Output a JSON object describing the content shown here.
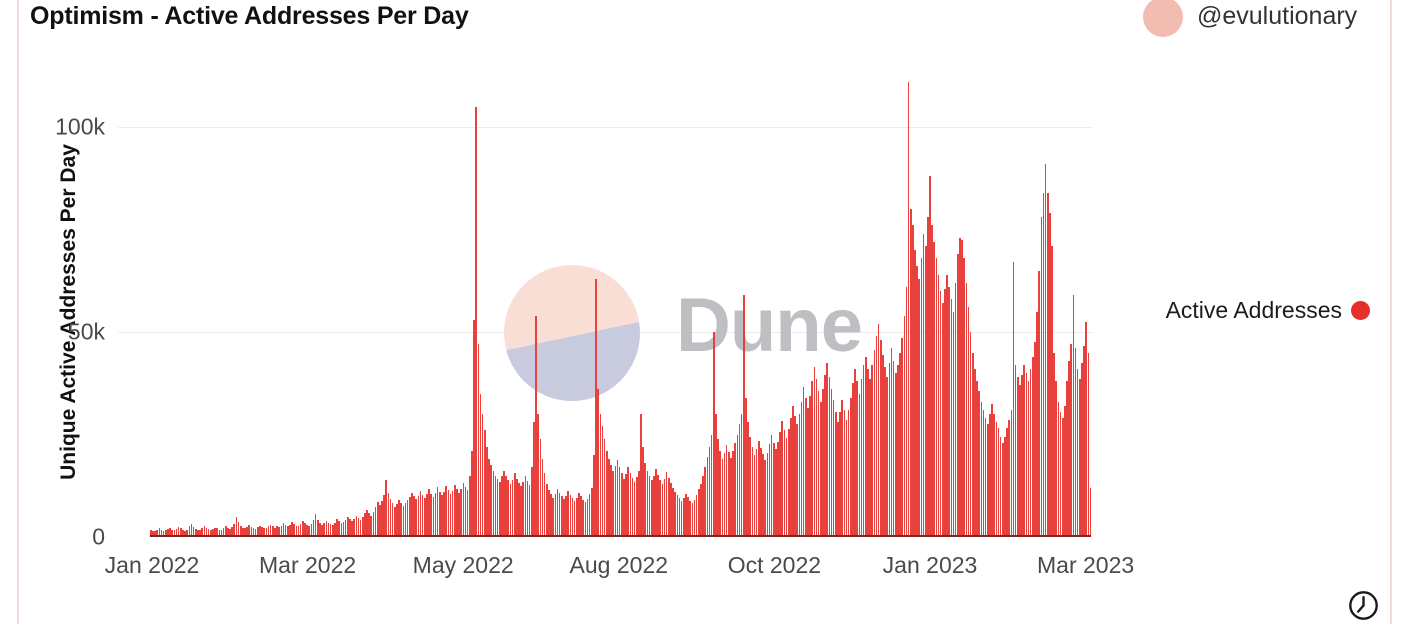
{
  "header": {
    "title": "Optimism - Active Addresses Per Day",
    "author_handle": "@evulutionary"
  },
  "watermark": {
    "icon": "dune-logo-icon",
    "text": "Dune"
  },
  "icons": {
    "clock": "clock-icon",
    "avatar": "author-avatar"
  },
  "colors": {
    "bar": "#e8403c",
    "legend_dot": "#e62e2a",
    "avatar_bg": "#f3bcb1",
    "card_border": "#efdbd4",
    "gridline": "#ececec",
    "baseline": "#7e2521"
  },
  "chart": {
    "y_axis_title": "Unique Active Addresses Per Day",
    "y_ticks": [
      {
        "label": "100k",
        "value": 100000
      },
      {
        "label": "50k",
        "value": 50000
      },
      {
        "label": "0",
        "value": 0
      }
    ],
    "x_ticks": [
      "Jan 2022",
      "Mar 2022",
      "May 2022",
      "Aug 2022",
      "Oct 2022",
      "Jan 2023",
      "Mar 2023"
    ],
    "legend": {
      "label": "Active Addresses"
    }
  },
  "chart_data": {
    "type": "bar",
    "title": "Optimism - Active Addresses Per Day",
    "xlabel": "",
    "ylabel": "Unique Active Addresses Per Day",
    "x_start": "2022-01-01",
    "x_frequency": "daily",
    "x_tick_labels": [
      "Jan 2022",
      "Mar 2022",
      "May 2022",
      "Aug 2022",
      "Oct 2022",
      "Jan 2023",
      "Mar 2023"
    ],
    "ylim": [
      0,
      112000
    ],
    "grid": "horizontal",
    "legend_position": "right",
    "series": [
      {
        "name": "Active Addresses",
        "color": "#e8403c",
        "values": [
          1600,
          1400,
          1500,
          1800,
          2100,
          1700,
          1500,
          1600,
          1900,
          2200,
          1800,
          1600,
          2000,
          2400,
          2100,
          1700,
          1500,
          1800,
          2600,
          3200,
          2400,
          1900,
          1700,
          1600,
          2100,
          2800,
          2300,
          1900,
          1700,
          2000,
          2300,
          2100,
          1800,
          1700,
          2200,
          2600,
          2300,
          2000,
          2400,
          3100,
          4900,
          3600,
          2700,
          2300,
          2100,
          2500,
          2900,
          2500,
          2200,
          2000,
          2400,
          2800,
          2400,
          2100,
          2300,
          2700,
          3000,
          2600,
          2300,
          2600,
          2400,
          2800,
          3300,
          2900,
          2600,
          3000,
          3600,
          3200,
          2800,
          2600,
          3100,
          3900,
          3400,
          2900,
          2700,
          3200,
          4200,
          5600,
          4100,
          3300,
          2900,
          3300,
          4000,
          3500,
          3100,
          2900,
          3400,
          4300,
          3800,
          3300,
          3600,
          4200,
          4900,
          4300,
          3800,
          4400,
          5200,
          4600,
          4100,
          4800,
          5800,
          6600,
          5900,
          5200,
          6100,
          7300,
          8600,
          7800,
          8800,
          10200,
          13900,
          10800,
          9200,
          8200,
          7400,
          8000,
          9000,
          8200,
          7500,
          8300,
          9000,
          9800,
          10800,
          9900,
          9200,
          10100,
          11200,
          10300,
          9600,
          10400,
          11600,
          10600,
          9800,
          10700,
          12100,
          11100,
          10200,
          11000,
          12400,
          11400,
          10500,
          11300,
          12800,
          11800,
          10800,
          11700,
          13200,
          12200,
          11400,
          15000,
          21000,
          53000,
          105000,
          47000,
          35000,
          30000,
          26000,
          22000,
          19000,
          17500,
          16000,
          15000,
          14200,
          13500,
          14800,
          16200,
          15000,
          13800,
          13000,
          14000,
          15500,
          14200,
          13200,
          12400,
          13400,
          14800,
          13600,
          12600,
          17000,
          28000,
          54000,
          30000,
          24000,
          19000,
          15500,
          13000,
          11500,
          10400,
          9600,
          10500,
          11800,
          10800,
          9900,
          9200,
          10000,
          11200,
          10300,
          9500,
          8800,
          9600,
          10800,
          9900,
          9100,
          8500,
          9300,
          10400,
          12000,
          20000,
          63000,
          36000,
          30000,
          27000,
          24000,
          21000,
          19000,
          17500,
          16000,
          17200,
          18800,
          17000,
          15500,
          14200,
          15400,
          17000,
          15600,
          14400,
          13400,
          14600,
          16200,
          30000,
          22000,
          18000,
          16000,
          14800,
          13800,
          15000,
          16600,
          15200,
          14000,
          13000,
          14200,
          15800,
          14400,
          13200,
          12000,
          11000,
          10200,
          9400,
          8700,
          9500,
          10600,
          9700,
          8900,
          8300,
          9100,
          10200,
          11600,
          13000,
          14800,
          17000,
          19500,
          22000,
          25000,
          50000,
          30000,
          24000,
          21000,
          19000,
          20500,
          22500,
          20800,
          19200,
          21000,
          23000,
          25000,
          27500,
          30000,
          59000,
          34000,
          28000,
          24500,
          22000,
          20000,
          21500,
          23500,
          21800,
          20200,
          18800,
          20400,
          22600,
          25000,
          23000,
          21400,
          23200,
          25600,
          28200,
          26000,
          24200,
          26400,
          29000,
          32000,
          29500,
          27500,
          30000,
          33000,
          36500,
          34000,
          31500,
          34500,
          38000,
          41500,
          38500,
          35500,
          33000,
          36000,
          39500,
          42500,
          39000,
          36000,
          33500,
          30500,
          28000,
          30500,
          33500,
          31000,
          28500,
          31000,
          34000,
          37500,
          41000,
          38000,
          35000,
          38500,
          42000,
          44000,
          41000,
          38500,
          42000,
          45500,
          49000,
          52000,
          48000,
          44500,
          41500,
          39000,
          42500,
          46000,
          43000,
          40000,
          42000,
          45000,
          48500,
          54000,
          61000,
          111000,
          80000,
          76000,
          70000,
          66000,
          63000,
          68000,
          74000,
          71000,
          78000,
          88000,
          76000,
          72000,
          68000,
          64000,
          60000,
          57000,
          60500,
          64000,
          61000,
          58000,
          55000,
          62000,
          69000,
          73000,
          72500,
          68000,
          62000,
          56000,
          50000,
          45000,
          41000,
          38000,
          35500,
          33000,
          31000,
          29000,
          27500,
          30000,
          32500,
          30000,
          28000,
          26500,
          24500,
          23000,
          24500,
          26500,
          28500,
          31000,
          67000,
          42000,
          39000,
          37000,
          39500,
          42000,
          40000,
          38000,
          41000,
          44000,
          47500,
          55000,
          65000,
          78000,
          84000,
          91000,
          84000,
          79000,
          71000,
          45000,
          38000,
          33000,
          30500,
          29000,
          32000,
          38000,
          43000,
          47000,
          59000,
          46000,
          41000,
          38500,
          42500,
          46500,
          52500,
          45000,
          12000
        ]
      }
    ]
  }
}
